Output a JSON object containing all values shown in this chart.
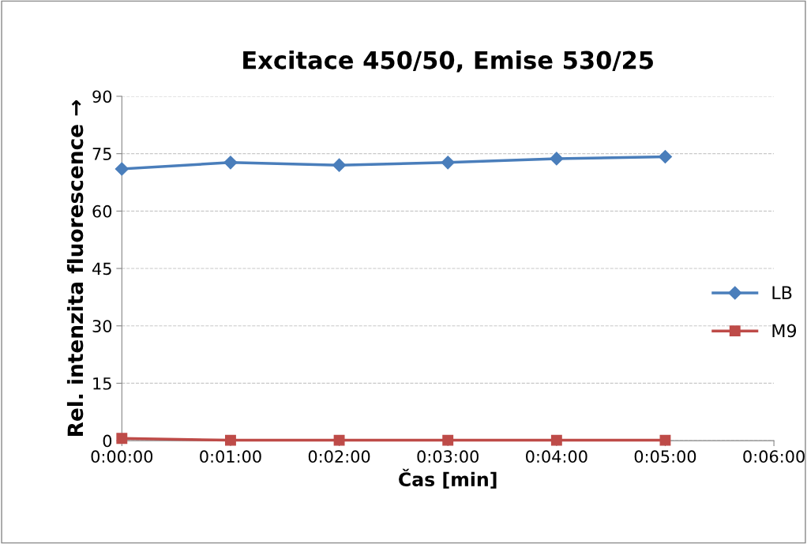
{
  "chart_data": {
    "type": "line",
    "title": "Excitace 450/50, Emise 530/25",
    "xlabel": "Čas [min]",
    "ylabel": "Rel. intenzita fluorescence →",
    "x": [
      0,
      1,
      2,
      3,
      4,
      5
    ],
    "series": [
      {
        "name": "LB",
        "color": "#4a7ebb",
        "marker": "diamond",
        "values": [
          71.0,
          72.7,
          72.0,
          72.7,
          73.7,
          74.2
        ]
      },
      {
        "name": "M9",
        "color": "#be4b48",
        "marker": "square",
        "values": [
          0.6,
          0.1,
          0.1,
          0.1,
          0.1,
          0.1
        ]
      }
    ],
    "xlim": [
      0,
      6
    ],
    "xticks": [
      {
        "value": 0,
        "label": "0:00:00"
      },
      {
        "value": 1,
        "label": "0:01:00"
      },
      {
        "value": 2,
        "label": "0:02:00"
      },
      {
        "value": 3,
        "label": "0:03:00"
      },
      {
        "value": 4,
        "label": "0:04:00"
      },
      {
        "value": 5,
        "label": "0:05:00"
      },
      {
        "value": 6,
        "label": "0:06:00"
      }
    ],
    "ylim": [
      0,
      90
    ],
    "yticks": [
      0,
      15,
      30,
      45,
      60,
      75,
      90
    ],
    "grid": "y",
    "legend": "right",
    "line_style": "solid"
  }
}
